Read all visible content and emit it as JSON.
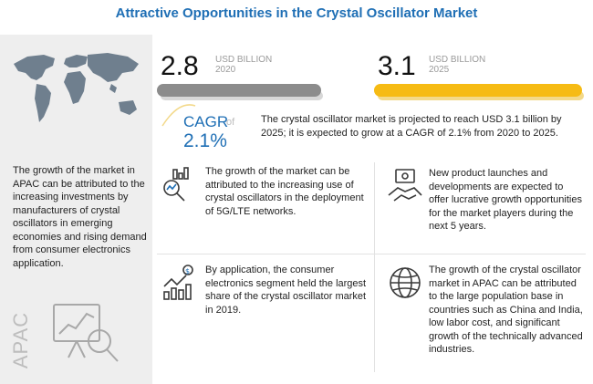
{
  "title": "Attractive Opportunities in the Crystal Oscillator Market",
  "left_panel": {
    "text": "The growth of the market in APAC can be attributed to the increasing investments by manufacturers of crystal oscillators in emerging economies and rising demand from consumer electronics application.",
    "region_label": "APAC"
  },
  "market": {
    "value_2020": "2.8",
    "unit_2020_line1": "USD BILLION",
    "unit_2020_line2": "2020",
    "value_2025": "3.1",
    "unit_2025_line1": "USD BILLION",
    "unit_2025_line2": "2025"
  },
  "cagr": {
    "label": "CAGR",
    "of": "of",
    "value": "2.1%",
    "text": "The crystal oscillator market is projected to reach USD 3.1 billion by 2025; it is expected to grow at a CAGR of 2.1% from 2020 to 2025."
  },
  "cards": {
    "top_left": "The growth of the market can be attributed to the increasing use of crystal oscillators in the deployment of 5G/LTE networks.",
    "top_right": "New product launches and developments are expected to offer lucrative growth opportunities for the market players during the next 5 years.",
    "bottom_left": "By application, the consumer electronics segment held the largest share of the crystal oscillator market in 2019.",
    "bottom_right": "The growth of the crystal oscillator market in APAC can be attributed to the large population base in countries such as China and India, low labor cost, and significant growth of the technically advanced industries."
  },
  "colors": {
    "title": "#1f6fb5",
    "bar_2020": "#8c8c8c",
    "bar_2025": "#f6bb14",
    "accent": "#1f6fb5"
  },
  "icons": [
    "world-map-icon",
    "analytics-search-icon",
    "handshake-money-icon",
    "growth-chart-icon",
    "globe-icon",
    "apac-analysis-icon"
  ]
}
